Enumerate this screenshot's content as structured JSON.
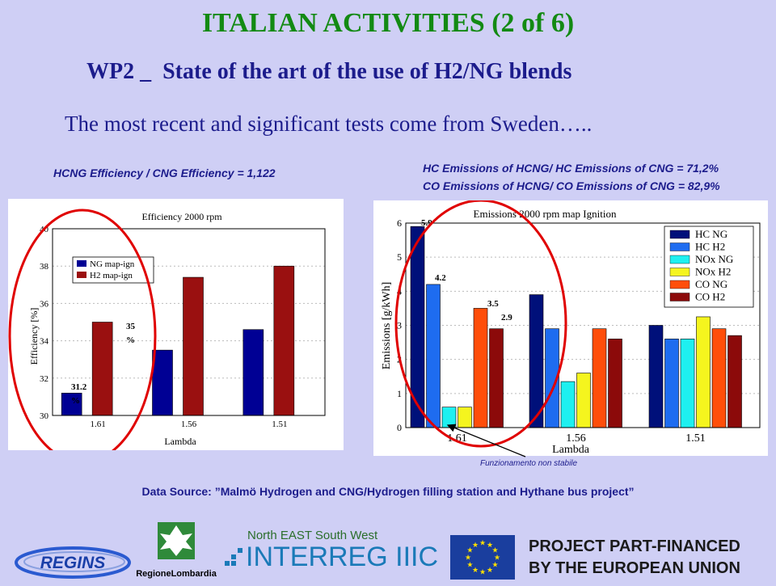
{
  "header": {
    "title": "ITALIAN ACTIVITIES   (2 of 6)",
    "subtitle": "WP2 _  State of the art of the use of H2/NG blends",
    "intro": "The most recent and significant tests come from Sweden….."
  },
  "notes": {
    "efficiency_ratio": "HCNG Efficiency / CNG Efficiency = 1,122",
    "hc_ratio": "HC Emissions of HCNG/ HC Emissions of CNG = 71,2%",
    "co_ratio": "CO Emissions of HCNG/ CO Emissions of CNG = 82,9%",
    "unstable": "Funzionamento non stabile",
    "source": "Data Source: ”Malmö Hydrogen and CNG/Hydrogen filling station and Hythane bus project”"
  },
  "annotations": {
    "eff_ng": "31.2 %",
    "eff_h2": "35 %",
    "em_hc_ng": "5.9",
    "em_hc_h2": "4.2",
    "em_co_ng": "3.5",
    "em_co_h2": "2.9"
  },
  "footer": {
    "regins": "REGINS",
    "lombardia": "RegioneLombardia",
    "interreg_top": "North EAST South West",
    "interreg": "INTERREG IIIC",
    "eu_line1": "PROJECT PART-FINANCED",
    "eu_line2": "BY THE EUROPEAN UNION"
  },
  "chart_data": [
    {
      "type": "bar",
      "title": "Efficiency 2000 rpm",
      "xlabel": "Lambda",
      "ylabel": "Efficiency [%]",
      "categories": [
        "1.61",
        "1.56",
        "1.51"
      ],
      "ylim": [
        30,
        40
      ],
      "yticks": [
        30,
        32,
        34,
        36,
        38,
        40
      ],
      "legend_position": "top-left",
      "series": [
        {
          "name": "NG map-ign",
          "color": "#000094",
          "values": [
            31.2,
            33.5,
            34.6
          ]
        },
        {
          "name": "H2 map-ign",
          "color": "#9a1010",
          "values": [
            35.0,
            37.4,
            38.0
          ]
        }
      ]
    },
    {
      "type": "bar",
      "title": "Emissions 2000 rpm map Ignition",
      "xlabel": "Lambda",
      "ylabel": "Emissions [g/kWh]",
      "categories": [
        "1.61",
        "1.56",
        "1.51"
      ],
      "ylim": [
        0,
        6
      ],
      "yticks": [
        0,
        1,
        2,
        3,
        4,
        5,
        6
      ],
      "legend_position": "top-right",
      "series": [
        {
          "name": "HC NG",
          "color": "#00107a",
          "values": [
            5.9,
            3.9,
            3.0
          ]
        },
        {
          "name": "HC H2",
          "color": "#1e6cf0",
          "values": [
            4.2,
            2.9,
            2.6
          ]
        },
        {
          "name": "NOx NG",
          "color": "#1ef0f0",
          "values": [
            0.6,
            1.35,
            2.6
          ]
        },
        {
          "name": "NOx H2",
          "color": "#f5f51e",
          "values": [
            0.6,
            1.6,
            3.25
          ]
        },
        {
          "name": "CO NG",
          "color": "#ff4e0a",
          "values": [
            3.5,
            2.9,
            2.9
          ]
        },
        {
          "name": "CO H2",
          "color": "#8c0a0a",
          "values": [
            2.9,
            2.6,
            2.7
          ]
        }
      ]
    }
  ]
}
